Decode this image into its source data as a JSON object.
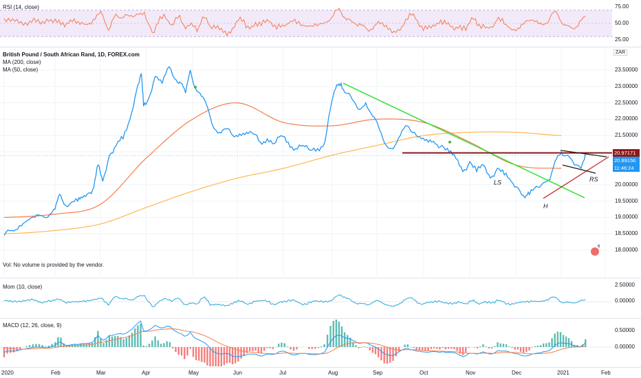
{
  "rsi": {
    "legend": "RSI (14, close)",
    "ticks": [
      "75.00",
      "50.00",
      "25.00"
    ],
    "tick_values": [
      75,
      50,
      25
    ],
    "band": [
      30,
      70
    ],
    "colors": {
      "line": "#f57c4a",
      "band": "#ece0f7",
      "border": "#b39ddb"
    }
  },
  "main": {
    "legend": [
      "British Pound / South African Rand, 1D, FOREX.com",
      "MA (200, close)",
      "MA (50, close)"
    ],
    "currency_badge": "ZAR",
    "ticks": [
      "23.50000",
      "23.00000",
      "22.50000",
      "22.00000",
      "21.50000",
      "21.00000",
      "20.00000",
      "19.50000",
      "19.00000",
      "18.50000",
      "18.00000"
    ],
    "tick_values": [
      23.5,
      23.0,
      22.5,
      22.0,
      21.5,
      21.0,
      20.0,
      19.5,
      19.0,
      18.5,
      18.0
    ],
    "price_tags": {
      "resistance": "20.97171",
      "last": "20.89156",
      "countdown": "11:46:24"
    },
    "annotations": [
      "LS",
      "H",
      "RS"
    ],
    "vol_note": "Vol: No volume is provided by the vendor.",
    "badge_label": "6",
    "colors": {
      "price": "#2196f3",
      "ma200": "#ffb74d",
      "ma50": "#f57c4a",
      "downtrend": "#33e133",
      "resistance": "#8b1a1a",
      "neckline": "#c62828",
      "wedge": "#1a1a1a"
    }
  },
  "mom": {
    "legend": "Mom (10, close)",
    "ticks": [
      "2.50000",
      "0.00000"
    ],
    "tick_values": [
      2.5,
      0.0
    ]
  },
  "macd": {
    "legend": "MACD (12, 26, close, 9)",
    "ticks": [
      "0.50000",
      "0.00000"
    ],
    "tick_values": [
      0.5,
      0.0
    ],
    "colors": {
      "macd": "#2196f3",
      "signal": "#f57c4a",
      "hist_up": "#26a69a",
      "hist_down": "#ef5350"
    }
  },
  "time_axis": [
    "2020",
    "Feb",
    "Mar",
    "Apr",
    "May",
    "Jun",
    "Jul",
    "Aug",
    "Sep",
    "Oct",
    "Nov",
    "Dec",
    "2021",
    "Feb"
  ],
  "chart_data": {
    "type": "line",
    "title": "British Pound / South African Rand, 1D, FOREX.com",
    "x": [
      "2020-01",
      "2020-02",
      "2020-03",
      "2020-04",
      "2020-05",
      "2020-06",
      "2020-07",
      "2020-08",
      "2020-09",
      "2020-10",
      "2020-11",
      "2020-12",
      "2021-01",
      "2021-02"
    ],
    "ylim": [
      17.9,
      23.8
    ],
    "series": [
      {
        "name": "British Pound / South African Rand",
        "values": [
          18.5,
          19.2,
          20.8,
          23.0,
          23.2,
          21.5,
          21.3,
          23.0,
          21.6,
          21.3,
          20.3,
          19.7,
          20.95,
          null
        ]
      },
      {
        "name": "MA (50, close)",
        "values": [
          19.0,
          19.1,
          19.4,
          20.8,
          22.0,
          22.5,
          21.9,
          21.8,
          22.0,
          21.9,
          21.3,
          20.6,
          20.5,
          null
        ]
      },
      {
        "name": "MA (200, close)",
        "values": [
          18.5,
          18.6,
          18.8,
          19.3,
          19.8,
          20.2,
          20.5,
          20.9,
          21.2,
          21.5,
          21.6,
          21.6,
          21.5,
          null
        ]
      }
    ]
  }
}
